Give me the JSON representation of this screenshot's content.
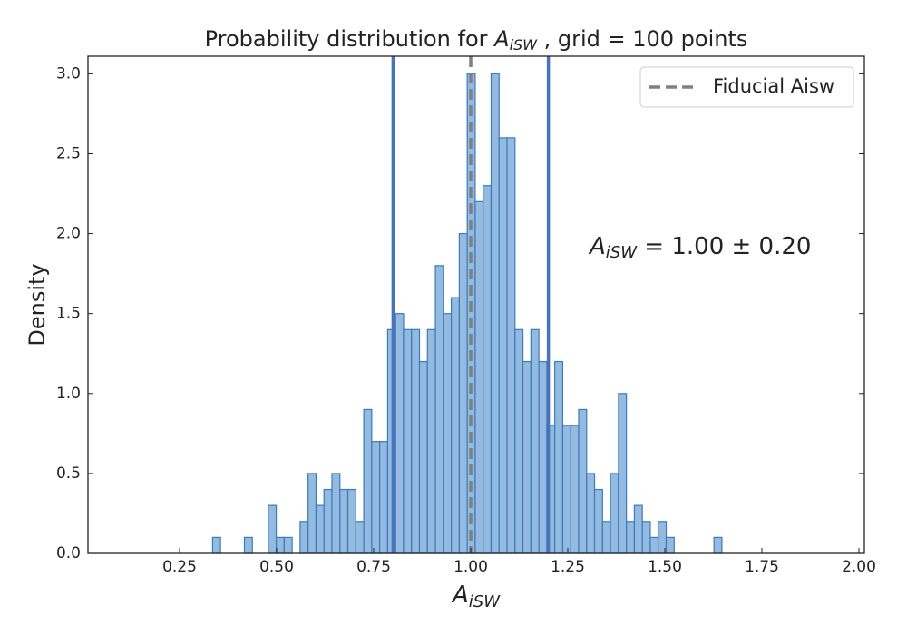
{
  "chart_data": {
    "type": "histogram",
    "title": [
      "Probability distribution for ",
      "A",
      "iSW",
      " , grid = 100 points"
    ],
    "x_label": [
      "A",
      "iSW"
    ],
    "y_label": "Density",
    "annotation": [
      "A",
      "iSW",
      " = 1.00 ± 0.20"
    ],
    "color": "#94bbdf",
    "edgecolor": "#3a7bbf",
    "bins": [
      0.335,
      0.3555,
      0.376,
      0.3965,
      0.417,
      0.4375,
      0.458,
      0.4785,
      0.499,
      0.5195,
      0.54,
      0.5605,
      0.581,
      0.6015,
      0.622,
      0.6425,
      0.663,
      0.6835,
      0.704,
      0.7245,
      0.745,
      0.7655,
      0.786,
      0.8065,
      0.827,
      0.8475,
      0.868,
      0.8885,
      0.909,
      0.9295,
      0.95,
      0.9705,
      0.991,
      1.0115,
      1.032,
      1.0525,
      1.073,
      1.0935,
      1.114,
      1.1345,
      1.155,
      1.1755,
      1.196,
      1.2165,
      1.237,
      1.2575,
      1.278,
      1.2985,
      1.319,
      1.3395,
      1.36,
      1.3805,
      1.401,
      1.4215,
      1.442,
      1.4625,
      1.483,
      1.5035,
      1.524,
      1.5445,
      1.565,
      1.5855,
      1.606,
      1.6265,
      1.647
    ],
    "values": [
      0.1,
      0,
      0,
      0,
      0.1,
      0,
      0,
      0.3,
      0.1,
      0.1,
      0,
      0.2,
      0.5,
      0.3,
      0.4,
      0.5,
      0.4,
      0.4,
      0.2,
      0.9,
      0.7,
      0.7,
      1.4,
      1.5,
      1.4,
      1.4,
      1.2,
      1.4,
      1.8,
      1.5,
      1.6,
      2.0,
      3.0,
      2.2,
      2.3,
      3.0,
      2.6,
      2.6,
      1.4,
      1.2,
      1.4,
      1.2,
      0.8,
      1.2,
      0.8,
      0.8,
      0.9,
      0.5,
      0.4,
      0.2,
      0.5,
      1.0,
      0.2,
      0.3,
      0.2,
      0.1,
      0.2,
      0.1,
      0,
      0,
      0,
      0,
      0,
      0.1
    ],
    "vlines": [
      {
        "x": 0.8,
        "color": "#4a72b8",
        "style": "solid"
      },
      {
        "x": 1.2,
        "color": "#4a72b8",
        "style": "solid"
      },
      {
        "x": 1.0,
        "color": "#808080",
        "style": "dashed",
        "name": "Fiducial Aisw"
      }
    ],
    "xlim": [
      0.014,
      2.014
    ],
    "ylim": [
      0,
      3.11
    ],
    "xticks": [
      0.25,
      {
        "value": 0.5,
        "label": "0.50"
      },
      0.75,
      {
        "value": 1.0,
        "label": "1.00"
      },
      1.25,
      {
        "value": 1.5,
        "label": "1.50"
      },
      1.75,
      {
        "value": 2.0,
        "label": "2.00"
      }
    ],
    "yticks": [
      {
        "value": 0,
        "label": "0.0"
      },
      0.5,
      {
        "value": 1.0,
        "label": "1.0"
      },
      1.5,
      {
        "value": 2.0,
        "label": "2.0"
      },
      2.5,
      {
        "value": 3.0,
        "label": "3.0"
      }
    ],
    "legend_position": "upper right"
  }
}
